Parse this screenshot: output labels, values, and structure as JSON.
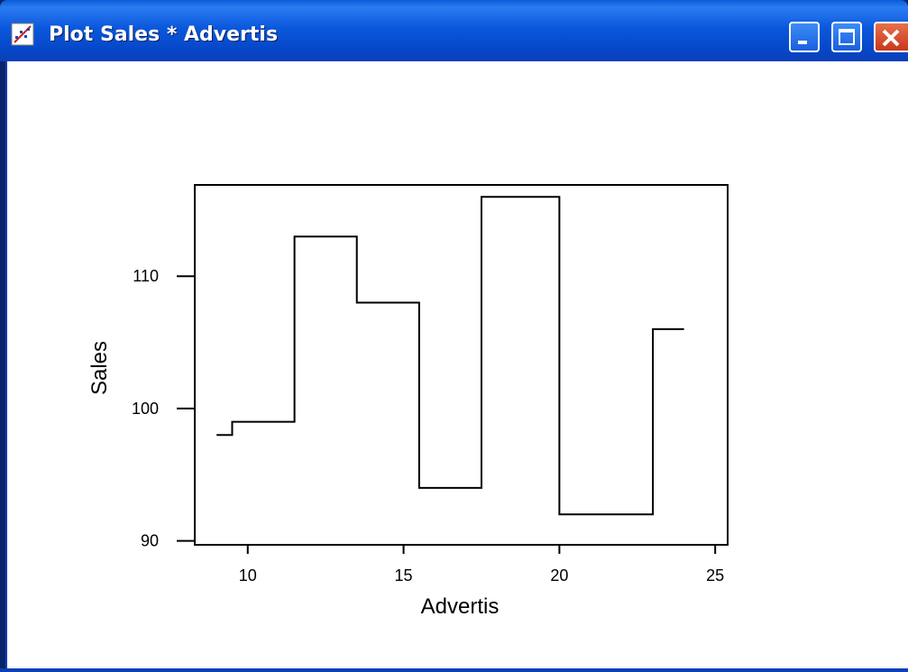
{
  "window": {
    "title": "Plot Sales * Advertis",
    "icons": {
      "app": "scatter-plot-icon",
      "minimize": "minimize-icon",
      "maximize": "maximize-icon",
      "close": "close-icon"
    },
    "colors": {
      "titlebar": "#0b58dc",
      "close": "#d6522e",
      "background": "#ffffff",
      "line": "#000000"
    }
  },
  "chart_data": {
    "type": "line",
    "step": true,
    "title": "",
    "xlabel": "Advertis",
    "ylabel": "Sales",
    "xlim": [
      8.3,
      25.4
    ],
    "ylim": [
      89.7,
      116.9
    ],
    "x_ticks": [
      10,
      15,
      20,
      25
    ],
    "y_ticks": [
      90,
      100,
      110
    ],
    "grid": false,
    "legend": "none",
    "series": [
      {
        "x": [
          9,
          9.5,
          11.5,
          13.5,
          15.5,
          17.5,
          20,
          23,
          24
        ],
        "y": [
          98,
          99,
          113,
          108,
          94,
          116,
          92,
          106,
          106
        ]
      }
    ]
  }
}
